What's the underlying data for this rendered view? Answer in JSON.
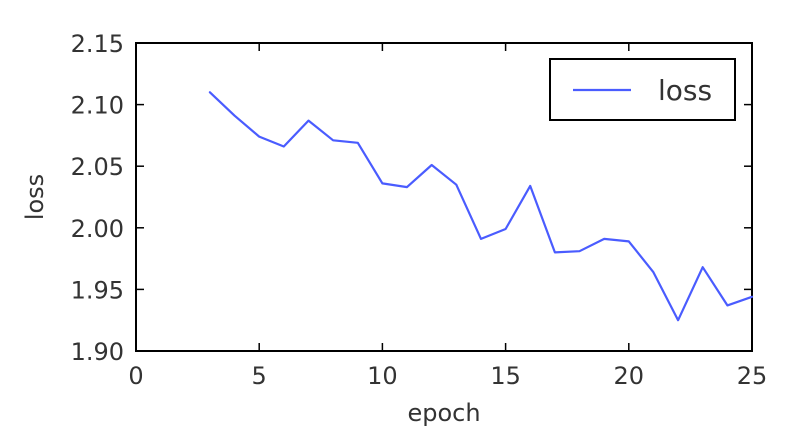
{
  "chart_data": {
    "type": "line",
    "title": "",
    "xlabel": "epoch",
    "ylabel": "loss",
    "xlim": [
      0,
      25
    ],
    "ylim": [
      1.9,
      2.15
    ],
    "xticks": [
      "0",
      "5",
      "10",
      "15",
      "20",
      "25"
    ],
    "yticks": [
      "1.90",
      "1.95",
      "2.00",
      "2.05",
      "2.10",
      "2.15"
    ],
    "grid": false,
    "legend_position": "top-right",
    "series": [
      {
        "name": "loss",
        "color": "#4a5cff",
        "x": [
          3,
          4,
          5,
          6,
          7,
          8,
          9,
          10,
          11,
          12,
          13,
          14,
          15,
          16,
          17,
          18,
          19,
          20,
          21,
          22,
          23,
          24,
          25
        ],
        "y": [
          2.11,
          2.091,
          2.074,
          2.066,
          2.087,
          2.071,
          2.069,
          2.036,
          2.033,
          2.051,
          2.035,
          1.991,
          1.999,
          2.034,
          1.98,
          1.981,
          1.991,
          1.989,
          1.964,
          1.925,
          1.968,
          1.937,
          1.944
        ]
      }
    ]
  }
}
